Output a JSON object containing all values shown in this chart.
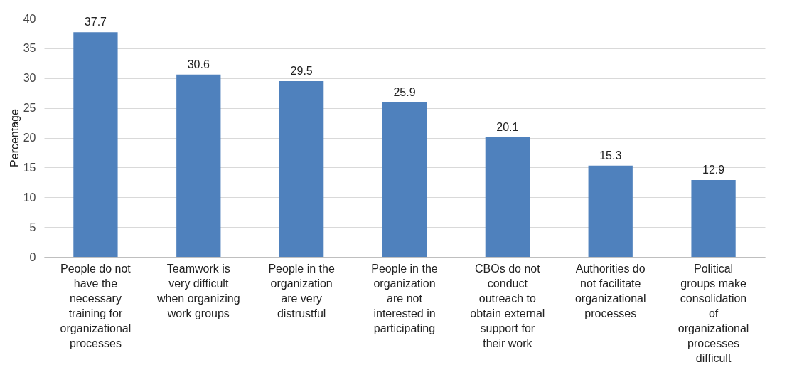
{
  "chart_data": {
    "type": "bar",
    "ylabel": "Percentage",
    "categories": [
      "People do not have the necessary training for organizational processes",
      "Teamwork is very difficult when organizing work groups",
      "People in the organization are very distrustful",
      "People in the organization are not interested in participating",
      "CBOs do not conduct outreach to obtain external support for their work",
      "Authorities do not facilitate organizational processes",
      "Political groups make consolidation of organizational processes difficult"
    ],
    "values": [
      37.7,
      30.6,
      29.5,
      25.9,
      20.1,
      15.3,
      12.9
    ],
    "color": "#4f81bd",
    "ylim": [
      0,
      40
    ],
    "yticks": [
      0,
      5,
      10,
      15,
      20,
      25,
      30,
      35,
      40
    ],
    "grid": "y",
    "data_labels": true
  }
}
